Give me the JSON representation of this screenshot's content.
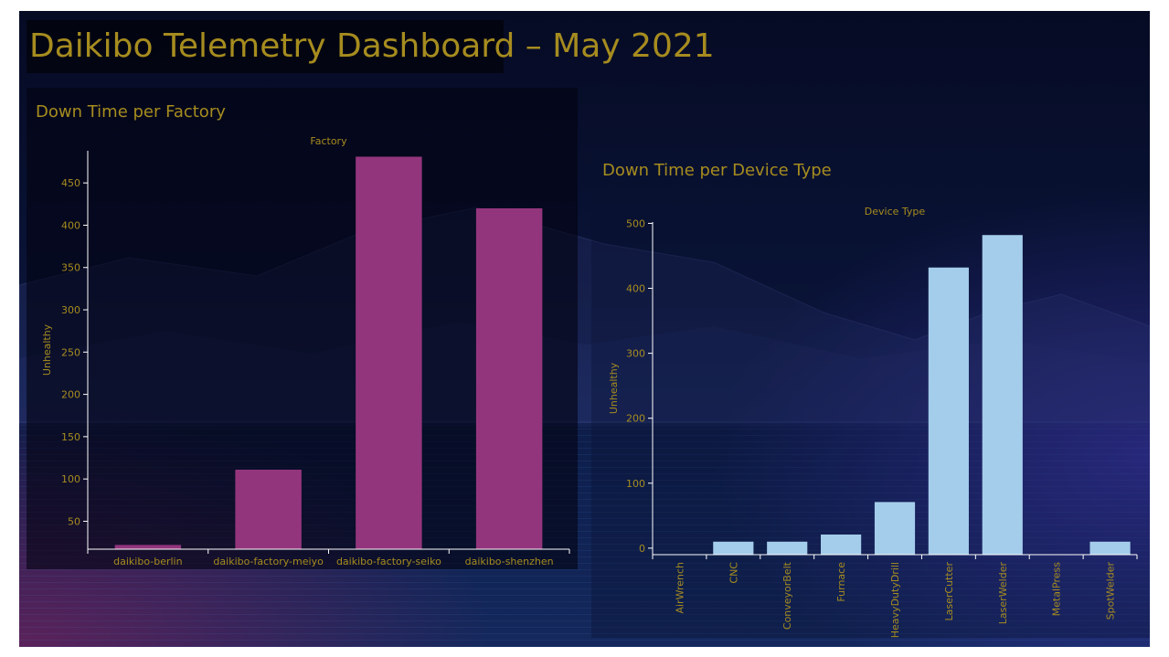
{
  "dashboard": {
    "title": "Daikibo Telemetry Dashboard – May 2021"
  },
  "colors": {
    "text": "#a68c1f",
    "factory_bar": "#93357d",
    "device_bar": "#a4cdeb",
    "axis": "#ffffff"
  },
  "chart_data": [
    {
      "type": "bar",
      "title": "Down Time per Factory",
      "xlabel": "Factory",
      "ylabel": "Unhealthy",
      "categories": [
        "daikibo-berlin",
        "daikibo-factory-meiyo",
        "daikibo-factory-seiko",
        "daikibo-shenzhen"
      ],
      "values": [
        22,
        111,
        481,
        420
      ],
      "ylim": [
        17,
        488
      ],
      "yticks": [
        50,
        100,
        150,
        200,
        250,
        300,
        350,
        400,
        450
      ],
      "grid": false
    },
    {
      "type": "bar",
      "title": "Down Time per Device Type",
      "xlabel": "Device Type",
      "ylabel": "Unhealthy",
      "categories": [
        "AirWrench",
        "CNC",
        "ConveyorBelt",
        "Furnace",
        "HeavyDutyDrill",
        "LaserCutter",
        "LaserWelder",
        "MetalPress",
        "SpotWelder"
      ],
      "values": [
        0,
        10,
        10,
        21,
        71,
        432,
        482,
        0,
        10
      ],
      "ylim": [
        -10,
        502
      ],
      "yticks": [
        0,
        100,
        200,
        300,
        400,
        500
      ],
      "grid": false
    }
  ]
}
